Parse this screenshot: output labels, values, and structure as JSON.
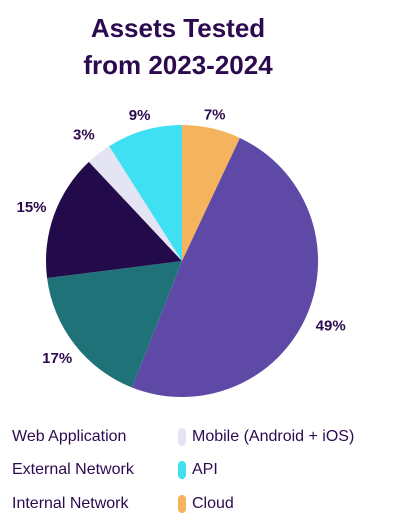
{
  "chart_data": {
    "type": "pie",
    "title": [
      "Assets Tested",
      "from 2023-2024"
    ],
    "slices": [
      {
        "name": "Cloud",
        "value": 7,
        "label": "7%",
        "color": "#f5b35d"
      },
      {
        "name": "Web Application",
        "value": 49,
        "label": "49%",
        "color": "#5e4aa6"
      },
      {
        "name": "External Network",
        "value": 17,
        "label": "17%",
        "color": "#1f7278"
      },
      {
        "name": "Internal Network",
        "value": 15,
        "label": "15%",
        "color": "#230a4a"
      },
      {
        "name": "Mobile (Android + iOS)",
        "value": 3,
        "label": "3%",
        "color": "#e4e4f5"
      },
      {
        "name": "API",
        "value": 9,
        "label": "9%",
        "color": "#3ee0f2"
      }
    ],
    "legend": {
      "placement": "bottom",
      "items": [
        {
          "name": "Web Application",
          "color": ""
        },
        {
          "name": "Mobile (Android + iOS)",
          "color": "#e4e4f5"
        },
        {
          "name": "External Network",
          "color": ""
        },
        {
          "name": "API",
          "color": "#3ee0f2"
        },
        {
          "name": "Internal Network",
          "color": ""
        },
        {
          "name": "Cloud",
          "color": "#f5b35d"
        }
      ]
    }
  }
}
